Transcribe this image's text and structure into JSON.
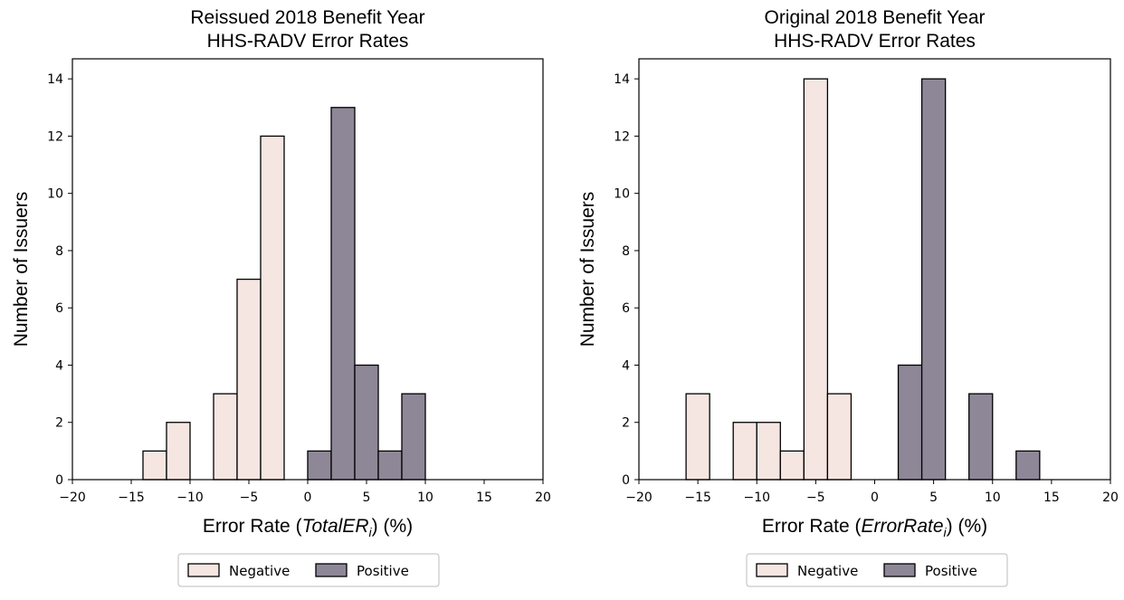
{
  "chart_data": [
    {
      "type": "bar",
      "title_line1": "Reissued 2018 Benefit Year",
      "title_line2": "HHS-RADV Error Rates",
      "xlabel_prefix": "Error Rate (",
      "xlabel_var": "TotalER",
      "xlabel_sub": "i",
      "xlabel_suffix": ") (%)",
      "ylabel": "Number of Issuers",
      "xlim": [
        -20,
        20
      ],
      "ylim": [
        0,
        14.7
      ],
      "xticks": [
        -20,
        -15,
        -10,
        -5,
        0,
        5,
        10,
        15,
        20
      ],
      "xtick_labels": [
        "−20",
        "−15",
        "−10",
        "−5",
        "0",
        "5",
        "10",
        "15",
        "20"
      ],
      "yticks": [
        0,
        2,
        4,
        6,
        8,
        10,
        12,
        14
      ],
      "ytick_labels": [
        "0",
        "2",
        "4",
        "6",
        "8",
        "10",
        "12",
        "14"
      ],
      "series": [
        {
          "name": "Negative",
          "color": "#f5e6e2",
          "bins": [
            {
              "x0": -14,
              "x1": -12,
              "count": 1
            },
            {
              "x0": -12,
              "x1": -10,
              "count": 2
            },
            {
              "x0": -8,
              "x1": -6,
              "count": 3
            },
            {
              "x0": -6,
              "x1": -4,
              "count": 7
            },
            {
              "x0": -4,
              "x1": -2,
              "count": 12
            }
          ]
        },
        {
          "name": "Positive",
          "color": "#8e8797",
          "bins": [
            {
              "x0": 0,
              "x1": 2,
              "count": 1
            },
            {
              "x0": 2,
              "x1": 4,
              "count": 13
            },
            {
              "x0": 4,
              "x1": 6,
              "count": 4
            },
            {
              "x0": 6,
              "x1": 8,
              "count": 1
            },
            {
              "x0": 8,
              "x1": 10,
              "count": 3
            }
          ]
        }
      ],
      "legend": [
        "Negative",
        "Positive"
      ]
    },
    {
      "type": "bar",
      "title_line1": "Original 2018 Benefit Year",
      "title_line2": "HHS-RADV Error Rates",
      "xlabel_prefix": "Error Rate (",
      "xlabel_var": "ErrorRate",
      "xlabel_sub": "i",
      "xlabel_suffix": ") (%)",
      "ylabel": "Number of Issuers",
      "xlim": [
        -20,
        20
      ],
      "ylim": [
        0,
        14.7
      ],
      "xticks": [
        -20,
        -15,
        -10,
        -5,
        0,
        5,
        10,
        15,
        20
      ],
      "xtick_labels": [
        "−20",
        "−15",
        "−10",
        "−5",
        "0",
        "5",
        "10",
        "15",
        "20"
      ],
      "yticks": [
        0,
        2,
        4,
        6,
        8,
        10,
        12,
        14
      ],
      "ytick_labels": [
        "0",
        "2",
        "4",
        "6",
        "8",
        "10",
        "12",
        "14"
      ],
      "series": [
        {
          "name": "Negative",
          "color": "#f5e6e2",
          "bins": [
            {
              "x0": -16,
              "x1": -14,
              "count": 3
            },
            {
              "x0": -12,
              "x1": -10,
              "count": 2
            },
            {
              "x0": -10,
              "x1": -8,
              "count": 2
            },
            {
              "x0": -8,
              "x1": -6,
              "count": 1
            },
            {
              "x0": -6,
              "x1": -4,
              "count": 14
            },
            {
              "x0": -4,
              "x1": -2,
              "count": 3
            }
          ]
        },
        {
          "name": "Positive",
          "color": "#8e8797",
          "bins": [
            {
              "x0": 2,
              "x1": 4,
              "count": 4
            },
            {
              "x0": 4,
              "x1": 6,
              "count": 14
            },
            {
              "x0": 8,
              "x1": 10,
              "count": 3
            },
            {
              "x0": 12,
              "x1": 14,
              "count": 1
            }
          ]
        }
      ],
      "legend": [
        "Negative",
        "Positive"
      ]
    }
  ]
}
